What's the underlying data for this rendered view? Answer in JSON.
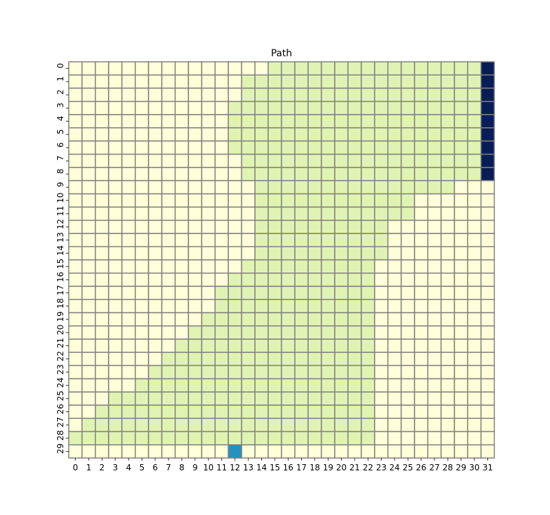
{
  "chart_data": {
    "type": "heatmap",
    "title": "Path",
    "xlabel": "",
    "ylabel": "",
    "x_ticks": [
      "0",
      "1",
      "2",
      "3",
      "4",
      "5",
      "6",
      "7",
      "8",
      "9",
      "10",
      "11",
      "12",
      "13",
      "14",
      "15",
      "16",
      "17",
      "18",
      "19",
      "20",
      "21",
      "22",
      "23",
      "24",
      "25",
      "26",
      "27",
      "28",
      "29",
      "30",
      "31"
    ],
    "y_ticks": [
      "0",
      "1",
      "2",
      "3",
      "4",
      "5",
      "6",
      "7",
      "8",
      "9",
      "10",
      "11",
      "12",
      "13",
      "14",
      "15",
      "16",
      "17",
      "18",
      "19",
      "20",
      "21",
      "22",
      "23",
      "24",
      "25",
      "26",
      "27",
      "28",
      "29"
    ],
    "colorbar": false,
    "grid": true,
    "grid_color": "#808080",
    "value_colors": {
      "0": "#ffffd9",
      "1": "#e0f3b2",
      "2": "#2492c0",
      "3": "#081d58"
    },
    "values": [
      "00000000000000011111111111111113",
      "00000000000001111111111111111113",
      "00000000000001111111111111111113",
      "00000000000011111111111111111113",
      "00000000000011111111111111111113",
      "00000000000011111111111111111113",
      "00000000000011111111111111111113",
      "00000000000001111111111111111113",
      "00000000000001111111111111111113",
      "00000000000000111111111111111000",
      "00000000000000111111111111000000",
      "00000000000000111111111111000000",
      "00000000000000111111111100000000",
      "00000000000000111111111100000000",
      "00000000000000111111111100000000",
      "00000000000001111111111000000000",
      "00000000000011111111111000000000",
      "00000000000111111111111000000000",
      "00000000000111111111111000000000",
      "00000000001111111111111000000000",
      "00000000011111111111111000000000",
      "00000000111111111111111000000000",
      "00000001111111111111111000000000",
      "00000011111111111111111000000000",
      "00000111111111111111111000000000",
      "00011111111111111111111000000000",
      "00111111111111111111111000000000",
      "01111111111111111111111000000000",
      "11111111111111111111111000000000",
      "00000000000020000000000000000000"
    ]
  }
}
